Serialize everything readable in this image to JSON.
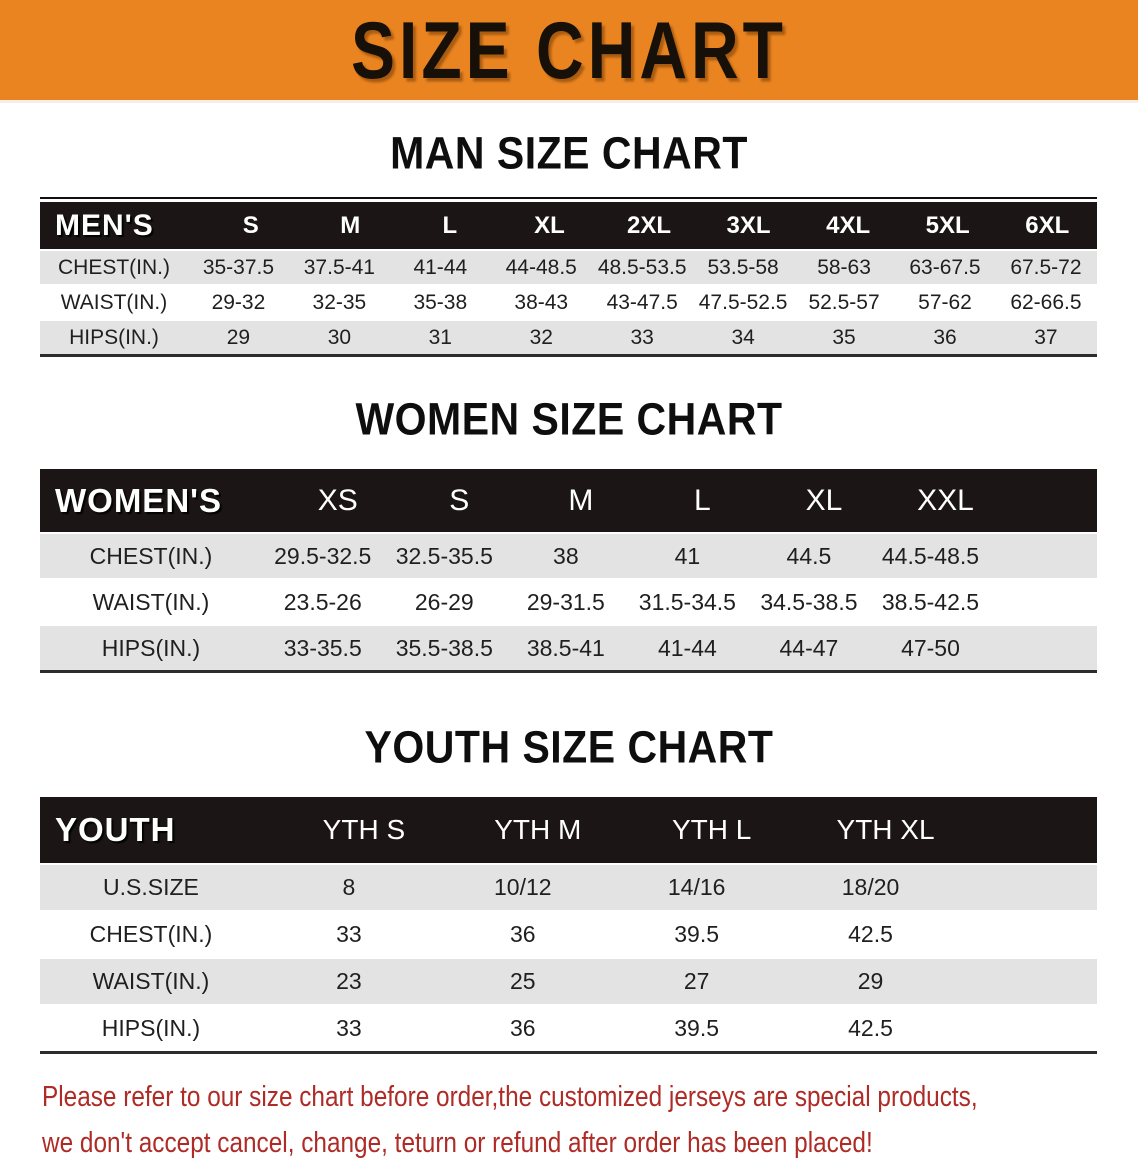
{
  "banner": {
    "title": "SIZE CHART",
    "bg_color": "#EA8420",
    "text_color": "#161008"
  },
  "sections": [
    {
      "id": "men",
      "heading": "MAN SIZE CHART",
      "header_label": "MEN'S",
      "columns": [
        "S",
        "M",
        "L",
        "XL",
        "2XL",
        "3XL",
        "4XL",
        "5XL",
        "6XL"
      ],
      "rows": [
        {
          "label": "CHEST(IN.)",
          "values": [
            "35-37.5",
            "37.5-41",
            "41-44",
            "44-48.5",
            "48.5-53.5",
            "53.5-58",
            "58-63",
            "63-67.5",
            "67.5-72"
          ]
        },
        {
          "label": "WAIST(IN.)",
          "values": [
            "29-32",
            "32-35",
            "35-38",
            "38-43",
            "43-47.5",
            "47.5-52.5",
            "52.5-57",
            "57-62",
            "62-66.5"
          ]
        },
        {
          "label": "HIPS(IN.)",
          "values": [
            "29",
            "30",
            "31",
            "32",
            "33",
            "34",
            "35",
            "36",
            "37"
          ]
        }
      ]
    },
    {
      "id": "women",
      "heading": "WOMEN SIZE CHART",
      "header_label": "WOMEN'S",
      "columns": [
        "XS",
        "S",
        "M",
        "L",
        "XL",
        "XXL"
      ],
      "rows": [
        {
          "label": "CHEST(IN.)",
          "values": [
            "29.5-32.5",
            "32.5-35.5",
            "38",
            "41",
            "44.5",
            "44.5-48.5"
          ]
        },
        {
          "label": "WAIST(IN.)",
          "values": [
            "23.5-26",
            "26-29",
            "29-31.5",
            "31.5-34.5",
            "34.5-38.5",
            "38.5-42.5"
          ]
        },
        {
          "label": "HIPS(IN.)",
          "values": [
            "33-35.5",
            "35.5-38.5",
            "38.5-41",
            "41-44",
            "44-47",
            "47-50"
          ]
        }
      ]
    },
    {
      "id": "youth",
      "heading": "YOUTH SIZE CHART",
      "header_label": "YOUTH",
      "columns": [
        "YTH S",
        "YTH M",
        "YTH L",
        "YTH XL"
      ],
      "rows": [
        {
          "label": "U.S.SIZE",
          "values": [
            "8",
            "10/12",
            "14/16",
            "18/20"
          ]
        },
        {
          "label": "CHEST(IN.)",
          "values": [
            "33",
            "36",
            "39.5",
            "42.5"
          ]
        },
        {
          "label": "WAIST(IN.)",
          "values": [
            "23",
            "25",
            "27",
            "29"
          ]
        },
        {
          "label": "HIPS(IN.)",
          "values": [
            "33",
            "36",
            "39.5",
            "42.5"
          ]
        }
      ]
    }
  ],
  "footer": {
    "line1": "Please refer to our size chart before order,the customized jerseys are special products,",
    "line2": "we don't accept cancel, change, teturn or refund after order has been placed!",
    "text_color": "#AE2B26"
  },
  "colors": {
    "header_bar": "#1b1515",
    "row_stripe": "#E3E3E3",
    "row_base": "#FFFFFF",
    "table_border": "#2c2c2c"
  }
}
